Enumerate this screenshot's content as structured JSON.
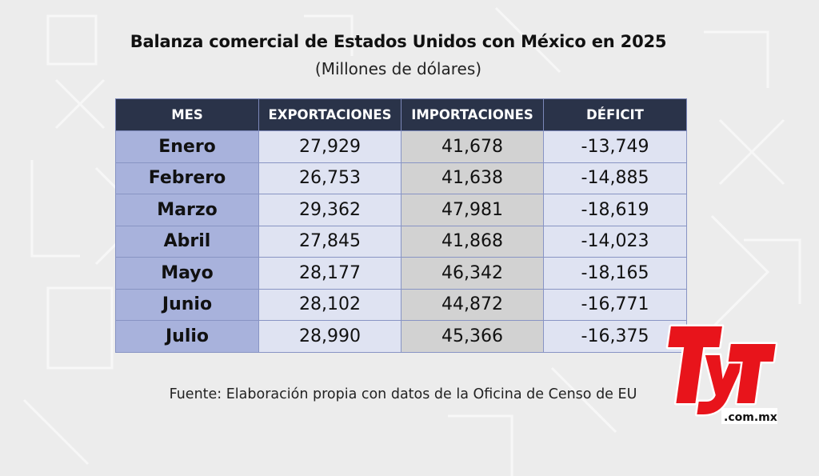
{
  "chart_data": {
    "type": "table",
    "title": "Balanza comercial de Estados Unidos con México en 2025",
    "subtitle": "(Millones de dólares)",
    "columns": [
      "MES",
      "EXPORTACIONES",
      "IMPORTACIONES",
      "DÉFICIT"
    ],
    "rows": [
      [
        "Enero",
        "27,929",
        "41,678",
        "-13,749"
      ],
      [
        "Febrero",
        "26,753",
        "41,638",
        "-14,885"
      ],
      [
        "Marzo",
        "29,362",
        "47,981",
        "-18,619"
      ],
      [
        "Abril",
        "27,845",
        "41,868",
        "-14,023"
      ],
      [
        "Mayo",
        "28,177",
        "46,342",
        "-18,165"
      ],
      [
        "Junio",
        "28,102",
        "44,872",
        "-16,771"
      ],
      [
        "Julio",
        "28,990",
        "45,366",
        "-16,375"
      ]
    ],
    "source": "Fuente: Elaboración propia con datos de la Oficina de Censo de EU"
  },
  "logo": {
    "text": "TyT",
    "domain": ".com.mx",
    "color": "#e8141b"
  },
  "colors": {
    "header_bg": "#2a3349",
    "month_col": "#a8b2dc",
    "light_cells": "#dfe3f2",
    "imports_col": "#d2d2d2",
    "background": "#ececec"
  }
}
